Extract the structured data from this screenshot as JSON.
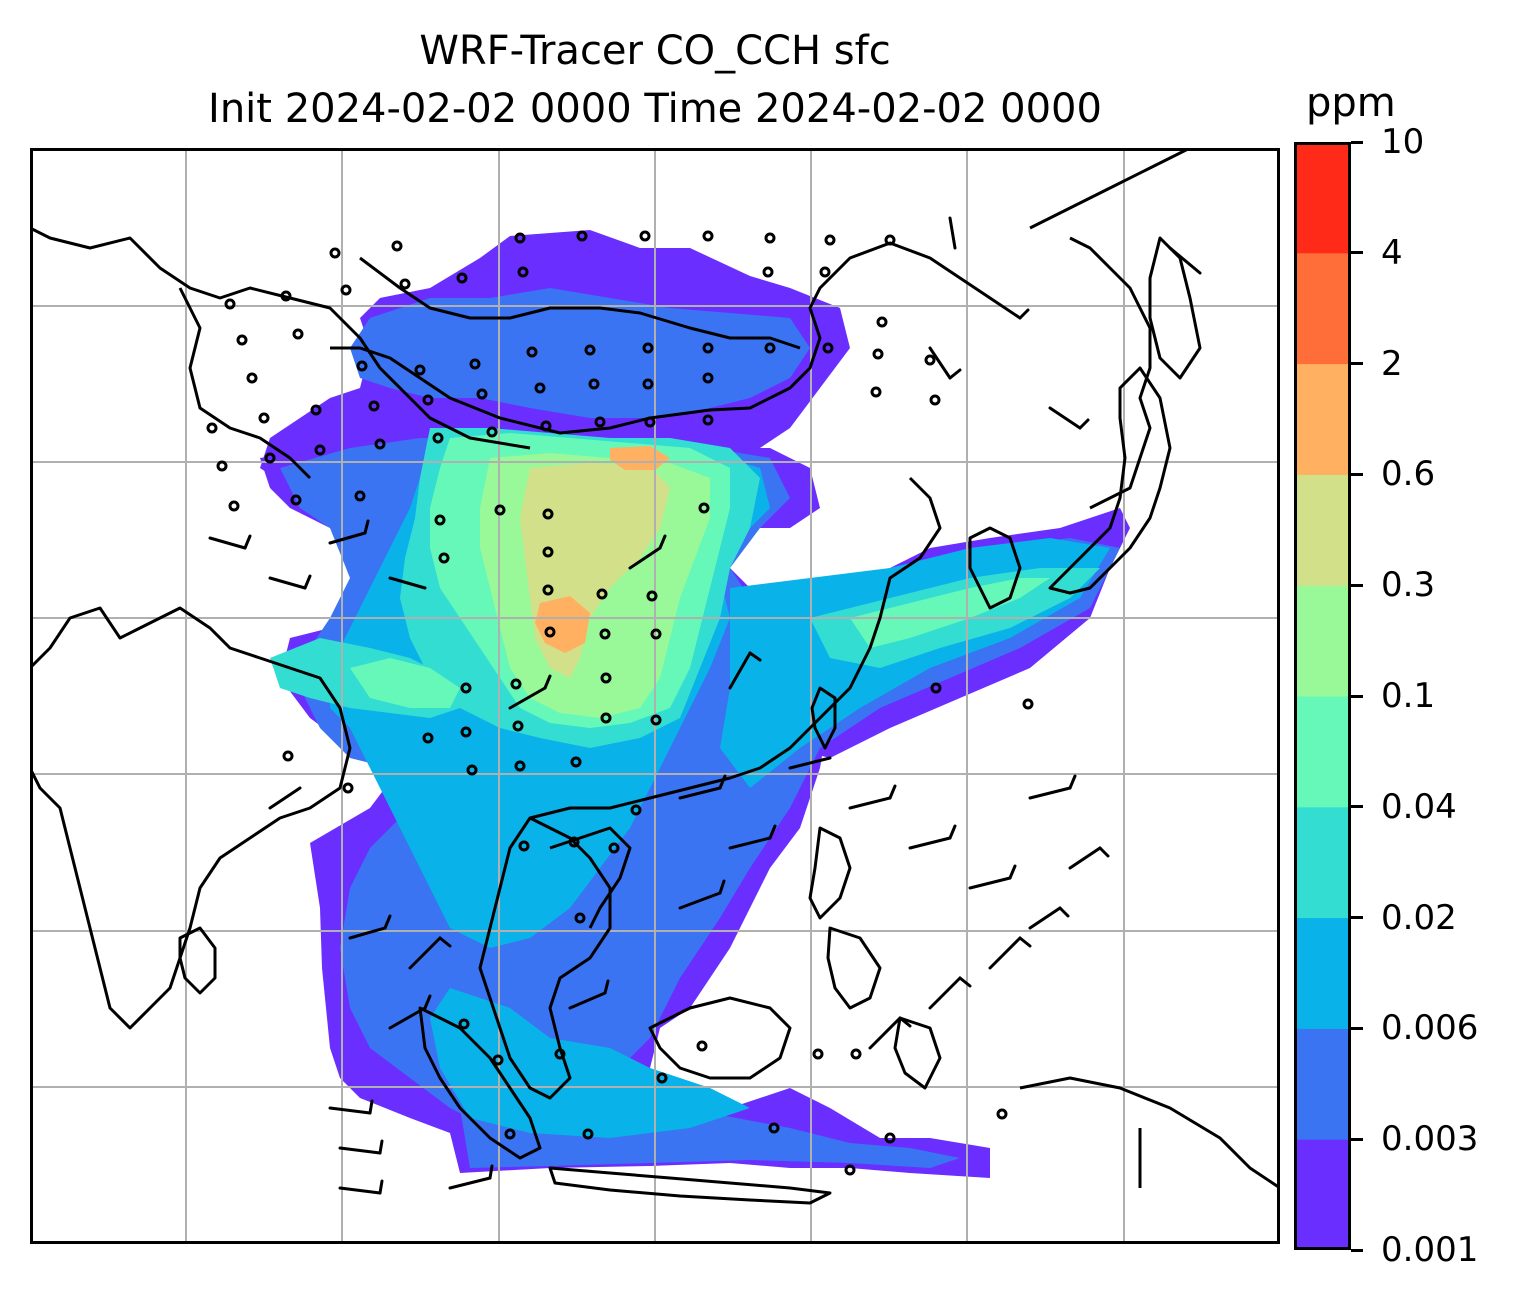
{
  "title": {
    "line1": "WRF-Tracer CO_CCH sfc",
    "line2": "Init 2024-02-02 0000 Time 2024-02-02 0000"
  },
  "colorbar": {
    "unit": "ppm",
    "levels": [
      "0.001",
      "0.003",
      "0.006",
      "0.02",
      "0.04",
      "0.1",
      "0.3",
      "0.6",
      "2",
      "4",
      "10"
    ],
    "colors": [
      "#6a2eff",
      "#3a74f3",
      "#09b2e8",
      "#34ddd2",
      "#66f8b8",
      "#99f898",
      "#d3e08a",
      "#ffb060",
      "#ff6e38",
      "#ff2a18"
    ]
  },
  "map": {
    "type": "filled contour map with wind barbs and coastlines",
    "grid": true,
    "grid_color": "#b0b0b0",
    "coastline_color": "#000000"
  }
}
